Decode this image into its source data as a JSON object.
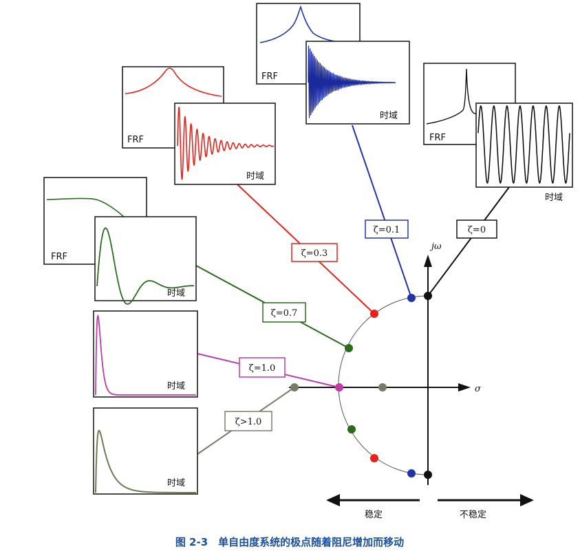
{
  "axes": {
    "vertical_label": "jω",
    "horizontal_label": "σ"
  },
  "regions": {
    "stable": "稳定",
    "unstable": "不稳定"
  },
  "panel_labels": {
    "frf": "FRF",
    "time": "时域"
  },
  "damping_labels": {
    "z0": "ζ=0",
    "z01": "ζ=0.1",
    "z03": "ζ=0.3",
    "z07": "ζ=0.7",
    "z10": "ζ=1.0",
    "zgt1": "ζ>1.0"
  },
  "caption": "图 2-3　单自由度系统的极点随着阻尼增加而移动",
  "colors": {
    "z0": "#111111",
    "z01": "#2233aa",
    "z03": "#e8211b",
    "z07": "#2c6a1e",
    "z10": "#c03aa8",
    "zgt1": "#7a7a6a",
    "caption": "#1a4fa0"
  }
}
